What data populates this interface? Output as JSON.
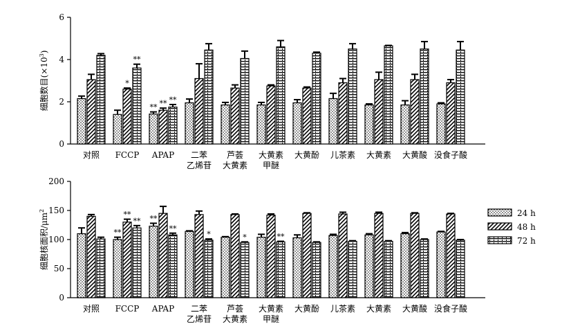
{
  "chart_data": [
    {
      "type": "bar",
      "ylabel": "细胞数目(×10",
      "ylabel_sup": "3",
      "ylabel_tail": ")",
      "ylim": [
        0,
        6
      ],
      "yticks": [
        0,
        2,
        4,
        6
      ],
      "categories": [
        [
          "对照"
        ],
        [
          "FCCP"
        ],
        [
          "APAP"
        ],
        [
          "二苯",
          "乙烯苷"
        ],
        [
          "芦荟",
          "大黄素"
        ],
        [
          "大黄素",
          "甲醚"
        ],
        [
          "大黄酚"
        ],
        [
          "儿茶素"
        ],
        [
          "大黄素"
        ],
        [
          "大黄酸"
        ],
        [
          "没食子酸"
        ]
      ],
      "series": [
        {
          "name": "24 h",
          "pattern": "dots",
          "values": [
            2.15,
            1.4,
            1.42,
            1.95,
            1.85,
            1.85,
            1.95,
            2.15,
            1.85,
            1.85,
            1.9
          ],
          "errors": [
            0.12,
            0.2,
            0.1,
            0.18,
            0.12,
            0.12,
            0.15,
            0.25,
            0.05,
            0.2,
            0.05
          ],
          "sig": [
            "",
            "",
            "**",
            "",
            "",
            "",
            "",
            "",
            "",
            "",
            ""
          ]
        },
        {
          "name": "48 h",
          "pattern": "hatch",
          "values": [
            3.05,
            2.6,
            1.6,
            3.1,
            2.65,
            2.75,
            2.65,
            2.9,
            3.05,
            3.05,
            2.9
          ],
          "errors": [
            0.25,
            0.05,
            0.1,
            0.7,
            0.15,
            0.05,
            0.05,
            0.2,
            0.35,
            0.25,
            0.15
          ],
          "sig": [
            "",
            "*",
            "**",
            "",
            "",
            "",
            "",
            "",
            "",
            "",
            ""
          ]
        },
        {
          "name": "72 h",
          "pattern": "bricks",
          "values": [
            4.2,
            3.6,
            1.75,
            4.45,
            4.05,
            4.6,
            4.3,
            4.5,
            4.65,
            4.5,
            4.45
          ],
          "errors": [
            0.08,
            0.18,
            0.12,
            0.3,
            0.35,
            0.3,
            0.05,
            0.25,
            0.02,
            0.35,
            0.4
          ],
          "sig": [
            "",
            "**",
            "**",
            "",
            "",
            "",
            "",
            "",
            "",
            "",
            ""
          ]
        }
      ]
    },
    {
      "type": "bar",
      "ylabel": "细胞核面积/μm",
      "ylabel_sup": "2",
      "ylabel_tail": "",
      "ylim": [
        0,
        200
      ],
      "yticks": [
        0,
        50,
        100,
        150,
        200
      ],
      "categories": [
        [
          "对照"
        ],
        [
          "FCCP"
        ],
        [
          "APAP"
        ],
        [
          "二苯",
          "乙烯苷"
        ],
        [
          "芦荟",
          "大黄素"
        ],
        [
          "大黄素",
          "甲醚"
        ],
        [
          "大黄酚"
        ],
        [
          "儿茶素"
        ],
        [
          "大黄素"
        ],
        [
          "大黄酸"
        ],
        [
          "没食子酸"
        ]
      ],
      "legend": {
        "position": "right",
        "entries": [
          "24 h",
          "48 h",
          "72 h"
        ]
      },
      "series": [
        {
          "name": "24 h",
          "pattern": "dots",
          "values": [
            110,
            100,
            123,
            114,
            104,
            104,
            103,
            107,
            108,
            110,
            113
          ],
          "errors": [
            10,
            4,
            5,
            1,
            1,
            5,
            5,
            2,
            2,
            2,
            1
          ],
          "sig": [
            "",
            "**",
            "**",
            "",
            "",
            "",
            "",
            "",
            "",
            "",
            ""
          ]
        },
        {
          "name": "48 h",
          "pattern": "hatch",
          "values": [
            140,
            130,
            145,
            143,
            143,
            142,
            145,
            144,
            145,
            145,
            144
          ],
          "errors": [
            3,
            5,
            12,
            6,
            1,
            2,
            1,
            3,
            2,
            1,
            1
          ],
          "sig": [
            "",
            "**",
            "",
            "",
            "",
            "",
            "",
            "",
            "",
            "",
            ""
          ]
        },
        {
          "name": "72 h",
          "pattern": "bricks",
          "values": [
            101,
            120,
            108,
            99,
            95,
            96,
            95,
            97,
            97,
            100,
            99
          ],
          "errors": [
            3,
            4,
            3,
            2,
            1,
            1,
            1,
            1,
            1,
            1,
            1
          ],
          "sig": [
            "",
            "**",
            "**",
            "*",
            "*",
            "**",
            "",
            "",
            "",
            "",
            ""
          ]
        }
      ]
    }
  ]
}
